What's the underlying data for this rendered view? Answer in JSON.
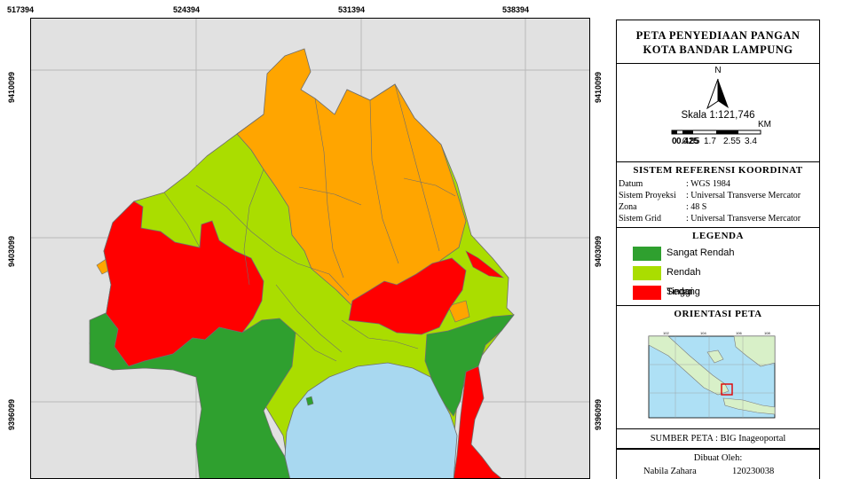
{
  "map": {
    "top_coords": [
      "517394",
      "524394",
      "531394",
      "538394"
    ],
    "side_coords": [
      "9410099",
      "9403099",
      "9396099"
    ],
    "colors": {
      "background": "#e1e1e1",
      "sea": "#a8d8f0",
      "sangat_rendah": "#2fa02f",
      "rendah": "#aadd00",
      "sedang": "#ffa500",
      "tinggi": "#ff0000",
      "boundary": "#6e6e6e"
    }
  },
  "panel": {
    "title_line1": "PETA PENYEDIAAN PANGAN",
    "title_line2": "KOTA BANDAR LAMPUNG",
    "north_label": "N",
    "scale_text": "Skala 1:121,746",
    "scale_unit": "KM",
    "scale_ticks": [
      "0",
      "0.425",
      "0.85",
      "1.7",
      "2.55",
      "3.4"
    ],
    "srk_title": "SISTEM REFERENSI KOORDINAT",
    "srk_rows": [
      {
        "key": "Datum",
        "value": ": WGS 1984"
      },
      {
        "key": "Sistem Proyeksi",
        "value": ": Universal Transverse Mercator"
      },
      {
        "key": "Zona",
        "value": ": 48 S"
      },
      {
        "key": "Sistem Grid",
        "value": ": Universal Transverse Mercator"
      }
    ],
    "legend_title": "LEGENDA",
    "legend_items": [
      {
        "label": "Sangat Rendah",
        "color": "#2fa02f"
      },
      {
        "label": "Rendah",
        "color": "#aadd00"
      },
      {
        "label": "Sedang",
        "color": "#ffa500"
      },
      {
        "label": "Tinggi",
        "color": "#ff0000"
      }
    ],
    "orientation_title": "ORIENTASI PETA",
    "inset_top_ticks": [
      "102",
      "104",
      "106",
      "108"
    ],
    "source": "SUMBER PETA : BIG Inageoportal",
    "made_by_label": "Dibuat Oleh:",
    "maker_name": "Nabila Zahara",
    "maker_nim": "120230038"
  }
}
